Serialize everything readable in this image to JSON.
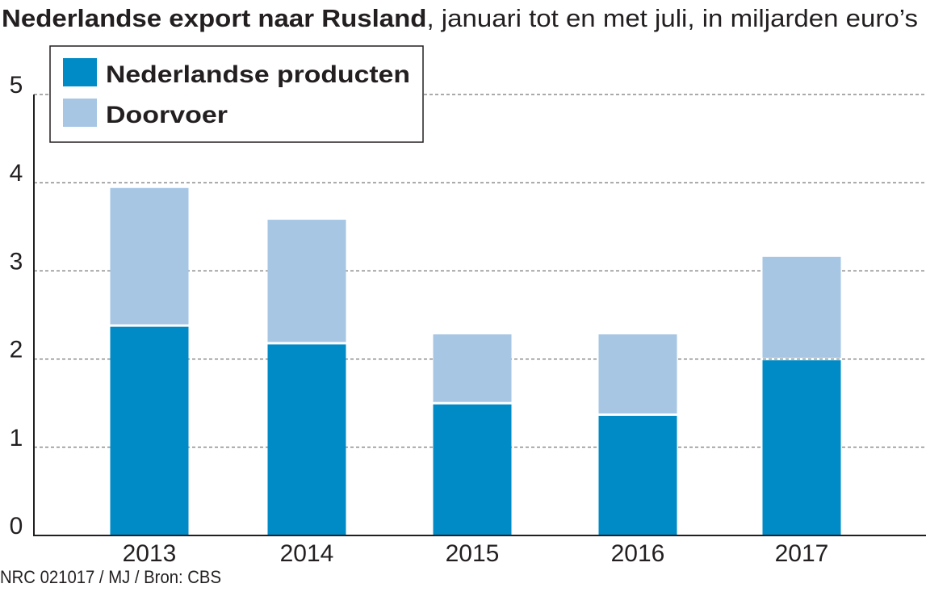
{
  "chart_data": {
    "type": "bar",
    "stacked": true,
    "title_bold": "Nederlandse export naar Rusland",
    "title_rest": ", januari tot en met juli, in miljarden euro’s",
    "xlabel": "",
    "ylabel": "",
    "categories": [
      "2013",
      "2014",
      "2015",
      "2016",
      "2017"
    ],
    "ylim": [
      0,
      5
    ],
    "yticks": [
      "0",
      "1",
      "2",
      "3",
      "4",
      "5"
    ],
    "grid": true,
    "legend_position": "top-left",
    "series": [
      {
        "name": "Nederlandse producten",
        "color": "#008bc6",
        "values": [
          2.38,
          2.18,
          1.5,
          1.37,
          2.0
        ]
      },
      {
        "name": "Doorvoer",
        "color": "#a6c6e4",
        "values": [
          1.56,
          1.4,
          0.78,
          0.91,
          1.16
        ]
      }
    ],
    "source": "NRC 021017 / MJ / Bron: CBS"
  }
}
